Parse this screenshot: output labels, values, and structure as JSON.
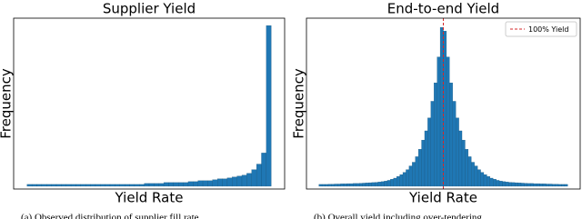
{
  "chart_data": [
    {
      "type": "histogram",
      "title": "Supplier Yield",
      "xlabel": "Yield Rate",
      "ylabel": "Frequency",
      "color": "#1f77b4",
      "bins": [
        0,
        2,
        4,
        6,
        8,
        10,
        12,
        14,
        16,
        18,
        20,
        22,
        24,
        26,
        28,
        30,
        32,
        34,
        36,
        38,
        40,
        42,
        44,
        46,
        48,
        50,
        52,
        54,
        56,
        58,
        60,
        62,
        64,
        66,
        68,
        70,
        72,
        74,
        76,
        78,
        80,
        82,
        84,
        86,
        88,
        90,
        92,
        94,
        96,
        98,
        100
      ],
      "values": [
        1,
        1,
        1,
        1,
        1,
        1,
        1,
        1,
        1,
        1,
        1,
        1,
        1,
        1,
        1,
        1,
        1,
        1,
        1,
        1,
        1,
        1,
        1,
        1,
        1.5,
        1.5,
        1.5,
        1.5,
        2,
        2,
        2,
        2,
        2,
        2.5,
        2.5,
        3,
        3,
        3,
        3.5,
        4,
        4,
        4.5,
        5,
        5.5,
        6,
        7,
        9,
        12,
        18,
        87
      ],
      "xlim": [
        -5.5,
        105.5
      ],
      "ylim": [
        -1.5,
        91
      ],
      "caption": "(a) Observed distribution of supplier fill rate"
    },
    {
      "type": "histogram",
      "title": "End-to-end Yield",
      "xlabel": "Yield Rate",
      "ylabel": "Frequency",
      "color": "#1f77b4",
      "bins": [
        40,
        41.5,
        43,
        44.5,
        46,
        47.5,
        49,
        50.5,
        52,
        53.5,
        55,
        56.5,
        58,
        59.5,
        61,
        62.5,
        64,
        65.5,
        67,
        68.5,
        70,
        71.5,
        73,
        74.5,
        76,
        77.5,
        79,
        80.5,
        82,
        83.5,
        85,
        86.5,
        88,
        89.5,
        91,
        92.5,
        94,
        95.5,
        97,
        98.5,
        100,
        101.5,
        103,
        104.5,
        106,
        107.5,
        109,
        110.5,
        112,
        113.5,
        115,
        116.5,
        118,
        119.5,
        121,
        122.5,
        124,
        125.5,
        127,
        128.5,
        130,
        131.5,
        133,
        134.5,
        136,
        137.5,
        139,
        140.5,
        142,
        143.5,
        145,
        146.5,
        148,
        149.5,
        151,
        152.5,
        154,
        155.5,
        157,
        158.5,
        160
      ],
      "values": [
        1,
        1,
        1,
        1.1,
        1.1,
        1.2,
        1.2,
        1.3,
        1.3,
        1.4,
        1.4,
        1.5,
        1.5,
        1.6,
        1.7,
        1.8,
        1.9,
        2,
        2.1,
        2.3,
        2.5,
        2.8,
        3.2,
        3.8,
        4.4,
        5.3,
        6.3,
        7.5,
        9,
        11,
        13,
        16,
        20,
        25,
        30,
        37,
        46,
        56,
        70,
        86,
        84,
        70,
        56,
        46,
        37,
        30,
        25,
        20,
        16,
        13,
        11,
        9,
        7.5,
        6.3,
        5.3,
        4.4,
        3.8,
        3.2,
        2.8,
        2.5,
        2.3,
        2.1,
        2,
        1.9,
        1.8,
        1.7,
        1.6,
        1.5,
        1.5,
        1.4,
        1.4,
        1.3,
        1.3,
        1.2,
        1.2,
        1.1,
        1.1,
        1,
        1,
        1
      ],
      "xlim": [
        34,
        166
      ],
      "ylim": [
        -1.5,
        91
      ],
      "vline": {
        "value": 100,
        "label": "100% Yield",
        "color": "#d62728"
      },
      "caption": "(b) Overall yield including over-tendering"
    }
  ]
}
